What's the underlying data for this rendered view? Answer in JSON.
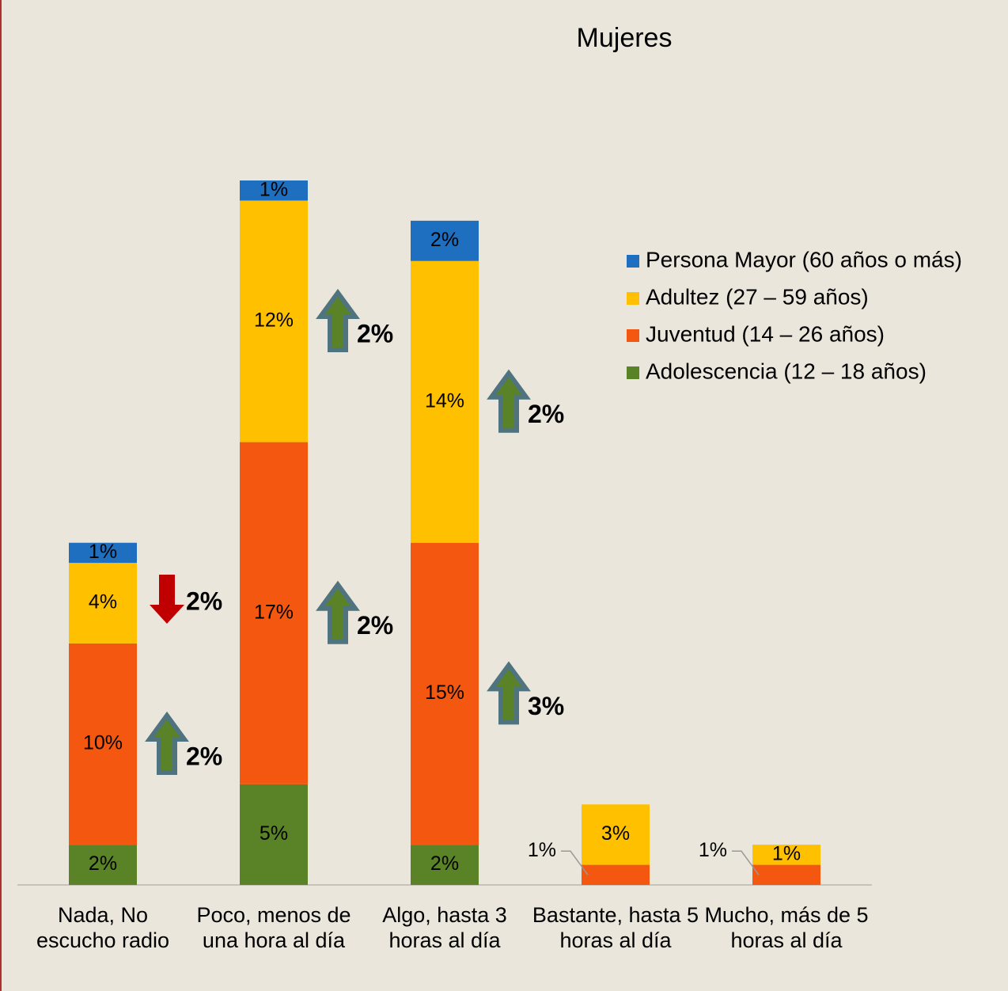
{
  "chart_data": {
    "type": "stacked_bar",
    "title": "Mujeres",
    "categories": [
      "Nada, No escucho radio",
      "Poco, menos de una hora al día",
      "Algo, hasta 3 horas al día",
      "Bastante, hasta 5 horas al día",
      "Mucho, más de 5 horas al día"
    ],
    "series": [
      {
        "name": "Adolescencia (12 – 18 años)",
        "color": "#5a8227",
        "values": [
          2,
          5,
          2,
          null,
          null
        ],
        "value_labels": [
          "2%",
          "5%",
          "2%",
          null,
          null
        ]
      },
      {
        "name": "Juventud (14 – 26 años)",
        "color": "#f4570f",
        "values": [
          10,
          17,
          15,
          1,
          1
        ],
        "value_labels": [
          "10%",
          "17%",
          "15%",
          "1%",
          "1%"
        ]
      },
      {
        "name": "Adultez (27 – 59 años)",
        "color": "#ffc000",
        "values": [
          4,
          12,
          14,
          3,
          1
        ],
        "value_labels": [
          "4%",
          "12%",
          "14%",
          "3%",
          "1%"
        ]
      },
      {
        "name": "Persona Mayor (60 años o más)",
        "color": "#1f6fc0",
        "values": [
          1,
          1,
          2,
          null,
          null
        ],
        "value_labels": [
          "1%",
          "1%",
          "2%",
          null,
          null
        ]
      }
    ],
    "annotations": [
      {
        "category": 0,
        "series": 2,
        "direction": "down",
        "text": "2%"
      },
      {
        "category": 0,
        "series": 1,
        "direction": "up",
        "text": "2%"
      },
      {
        "category": 1,
        "series": 2,
        "direction": "up",
        "text": "2%"
      },
      {
        "category": 1,
        "series": 1,
        "direction": "up",
        "text": "2%"
      },
      {
        "category": 2,
        "series": 2,
        "direction": "up",
        "text": "2%"
      },
      {
        "category": 2,
        "series": 1,
        "direction": "up",
        "text": "3%"
      }
    ],
    "legend": "right"
  }
}
